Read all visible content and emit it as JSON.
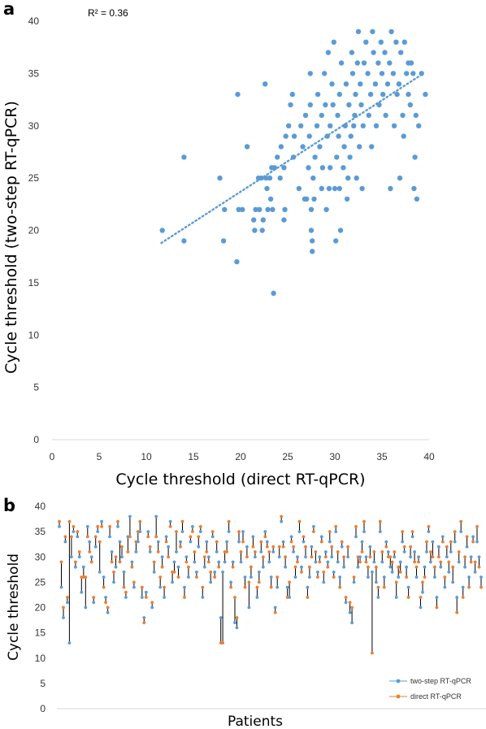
{
  "figure": {
    "panel_a_label": "a",
    "panel_b_label": "b"
  },
  "colors": {
    "two_step": "#5b9bd5",
    "direct": "#ed7d31",
    "connector": "#000000",
    "axis": "#d9d9d9"
  },
  "chart_data": [
    {
      "type": "scatter",
      "panel": "a",
      "xlabel": "Cycle threshold (direct RT-qPCR)",
      "ylabel": "Cycle threshold (two-step RT-qPCR)",
      "xlim": [
        0,
        40
      ],
      "ylim": [
        0,
        40
      ],
      "xticks": [
        "0",
        "5",
        "10",
        "15",
        "20",
        "25",
        "30",
        "35",
        "40"
      ],
      "yticks": [
        "0",
        "5",
        "10",
        "15",
        "20",
        "25",
        "30",
        "35",
        "40"
      ],
      "grid": false,
      "annotation": "R² = 0.36",
      "trendline": {
        "style": "dotted",
        "x": [
          11.6,
          39.4
        ],
        "y": [
          18.8,
          35.0
        ]
      },
      "points": [
        [
          11.7,
          20
        ],
        [
          14,
          27
        ],
        [
          14,
          19
        ],
        [
          17.8,
          25
        ],
        [
          18.2,
          19
        ],
        [
          18.3,
          22
        ],
        [
          19.7,
          33
        ],
        [
          19.6,
          17
        ],
        [
          19.8,
          22
        ],
        [
          20.2,
          22
        ],
        [
          20.7,
          28
        ],
        [
          21.4,
          21
        ],
        [
          21.6,
          22
        ],
        [
          21.5,
          20
        ],
        [
          21.9,
          25
        ],
        [
          22,
          22
        ],
        [
          22.2,
          25
        ],
        [
          22.4,
          21
        ],
        [
          22.3,
          20
        ],
        [
          22.6,
          34
        ],
        [
          22.7,
          25
        ],
        [
          22.8,
          24
        ],
        [
          22.9,
          22
        ],
        [
          23.1,
          25
        ],
        [
          23.2,
          23
        ],
        [
          23.3,
          26
        ],
        [
          23.4,
          22
        ],
        [
          23.5,
          14
        ],
        [
          23.6,
          26
        ],
        [
          23.9,
          27
        ],
        [
          24.2,
          25
        ],
        [
          24.3,
          28
        ],
        [
          24.6,
          26
        ],
        [
          24.7,
          22
        ],
        [
          24.8,
          29
        ],
        [
          24.6,
          21
        ],
        [
          25.1,
          30
        ],
        [
          25.3,
          32
        ],
        [
          25.6,
          27
        ],
        [
          25.7,
          29
        ],
        [
          25.5,
          33
        ],
        [
          26.2,
          24
        ],
        [
          26.4,
          30
        ],
        [
          26.6,
          28
        ],
        [
          26.8,
          23
        ],
        [
          26.9,
          31
        ],
        [
          27,
          23
        ],
        [
          27.2,
          26
        ],
        [
          27.3,
          29
        ],
        [
          27.4,
          32
        ],
        [
          27.4,
          35
        ],
        [
          27.5,
          20
        ],
        [
          27.5,
          22
        ],
        [
          27.6,
          19
        ],
        [
          27.6,
          18
        ],
        [
          27.7,
          25
        ],
        [
          27.8,
          23
        ],
        [
          27.9,
          27
        ],
        [
          28.1,
          30
        ],
        [
          28.2,
          33
        ],
        [
          28.4,
          28
        ],
        [
          28.6,
          24
        ],
        [
          28.6,
          31
        ],
        [
          28.7,
          26
        ],
        [
          28.9,
          35
        ],
        [
          29,
          32
        ],
        [
          29.1,
          22
        ],
        [
          29.2,
          29
        ],
        [
          29.3,
          37
        ],
        [
          29.4,
          24
        ],
        [
          29.5,
          30
        ],
        [
          29.5,
          26
        ],
        [
          29.7,
          34
        ],
        [
          29.8,
          32
        ],
        [
          29.9,
          38
        ],
        [
          30,
          24
        ],
        [
          30.1,
          19
        ],
        [
          30.2,
          27
        ],
        [
          30.3,
          31
        ],
        [
          30.4,
          29
        ],
        [
          30.5,
          33
        ],
        [
          30.5,
          24
        ],
        [
          30.6,
          20
        ],
        [
          30.7,
          36
        ],
        [
          30.9,
          26
        ],
        [
          31,
          28
        ],
        [
          31.1,
          30
        ],
        [
          31.2,
          34
        ],
        [
          31.3,
          23
        ],
        [
          31.4,
          25
        ],
        [
          31.5,
          32
        ],
        [
          31.6,
          27
        ],
        [
          31.7,
          29
        ],
        [
          31.8,
          37
        ],
        [
          31.9,
          35
        ],
        [
          32,
          30
        ],
        [
          32.1,
          31
        ],
        [
          32.2,
          33
        ],
        [
          32.3,
          25
        ],
        [
          32.4,
          36
        ],
        [
          32.5,
          39
        ],
        [
          32.6,
          28
        ],
        [
          32.7,
          34
        ],
        [
          32.8,
          32
        ],
        [
          32.9,
          24
        ],
        [
          33,
          30
        ],
        [
          33.1,
          36
        ],
        [
          33.3,
          38
        ],
        [
          33.5,
          35
        ],
        [
          33.6,
          31
        ],
        [
          33.8,
          33
        ],
        [
          33.9,
          28
        ],
        [
          34,
          39
        ],
        [
          34.1,
          37
        ],
        [
          34.3,
          34
        ],
        [
          34.4,
          30
        ],
        [
          34.6,
          36
        ],
        [
          34.7,
          32
        ],
        [
          34.9,
          38
        ],
        [
          35,
          35
        ],
        [
          35.1,
          33
        ],
        [
          35.3,
          37
        ],
        [
          35.4,
          31
        ],
        [
          35.6,
          34
        ],
        [
          35.8,
          36
        ],
        [
          35.9,
          24
        ],
        [
          36,
          39
        ],
        [
          36.2,
          35
        ],
        [
          36.3,
          30
        ],
        [
          36.5,
          38
        ],
        [
          36.6,
          33
        ],
        [
          36.8,
          34
        ],
        [
          36.9,
          25
        ],
        [
          37,
          37
        ],
        [
          37.2,
          31
        ],
        [
          37.3,
          29
        ],
        [
          37.4,
          38
        ],
        [
          37.6,
          35
        ],
        [
          37.8,
          33
        ],
        [
          38,
          32
        ],
        [
          38.1,
          36
        ],
        [
          38.3,
          35
        ],
        [
          38.4,
          24
        ],
        [
          38.6,
          31
        ],
        [
          38.5,
          27
        ],
        [
          38.7,
          23
        ],
        [
          38.9,
          30
        ],
        [
          39.2,
          35
        ],
        [
          39.6,
          33
        ],
        [
          37.8,
          36
        ]
      ]
    },
    {
      "type": "line",
      "panel": "b",
      "xlabel": "Patients",
      "ylabel": "Cycle threshold",
      "ylim": [
        0,
        40
      ],
      "yticks": [
        "0",
        "5",
        "10",
        "15",
        "20",
        "25",
        "30",
        "35",
        "40"
      ],
      "grid": false,
      "legend_position": "bottom-right",
      "series": [
        {
          "name": "two-step RT-qPCR"
        },
        {
          "name": "direct RT-qPCR"
        }
      ],
      "pairs": [
        [
          36,
          37
        ],
        [
          24,
          29
        ],
        [
          18,
          20
        ],
        [
          33,
          34
        ],
        [
          21,
          22
        ],
        [
          13,
          37
        ],
        [
          30,
          34
        ],
        [
          35,
          36
        ],
        [
          28,
          29
        ],
        [
          34,
          35
        ],
        [
          30,
          31
        ],
        [
          23,
          26
        ],
        [
          28,
          26
        ],
        [
          20,
          26
        ],
        [
          36,
          34
        ],
        [
          33,
          31
        ],
        [
          30,
          29
        ],
        [
          21,
          22
        ],
        [
          32,
          34
        ],
        [
          35,
          36
        ],
        [
          27,
          33
        ],
        [
          37,
          36
        ],
        [
          26,
          24
        ],
        [
          22,
          21
        ],
        [
          19,
          20
        ],
        [
          34,
          36
        ],
        [
          31,
          29
        ],
        [
          25,
          27
        ],
        [
          28,
          30
        ],
        [
          36,
          37
        ],
        [
          33,
          29
        ],
        [
          30,
          32
        ],
        [
          27,
          24
        ],
        [
          22,
          23
        ],
        [
          34,
          31
        ],
        [
          38,
          34
        ],
        [
          29,
          28
        ],
        [
          24,
          25
        ],
        [
          31,
          33
        ],
        [
          33,
          35
        ],
        [
          35,
          37
        ],
        [
          22,
          24
        ],
        [
          18,
          17
        ],
        [
          23,
          22
        ],
        [
          35,
          34
        ],
        [
          31,
          32
        ],
        [
          20,
          21
        ],
        [
          27,
          29
        ],
        [
          38,
          34
        ],
        [
          33,
          31
        ],
        [
          24,
          26
        ],
        [
          30,
          28
        ],
        [
          22,
          24
        ],
        [
          34,
          33
        ],
        [
          32,
          30
        ],
        [
          37,
          36
        ],
        [
          25,
          27
        ],
        [
          29,
          27
        ],
        [
          31,
          35
        ],
        [
          28,
          26
        ],
        [
          33,
          32
        ],
        [
          35,
          37
        ],
        [
          24,
          22
        ],
        [
          30,
          29
        ],
        [
          26,
          28
        ],
        [
          33,
          34
        ],
        [
          36,
          35
        ],
        [
          29,
          31
        ],
        [
          27,
          26
        ],
        [
          32,
          34
        ],
        [
          35,
          36
        ],
        [
          22,
          24
        ],
        [
          28,
          30
        ],
        [
          33,
          31
        ],
        [
          30,
          29
        ],
        [
          25,
          27
        ],
        [
          34,
          35
        ],
        [
          27,
          26
        ],
        [
          31,
          33
        ],
        [
          29,
          28
        ],
        [
          18,
          13
        ],
        [
          27,
          13
        ],
        [
          29,
          31
        ],
        [
          33,
          31
        ],
        [
          35,
          37
        ],
        [
          25,
          24
        ],
        [
          29,
          28
        ],
        [
          17,
          22
        ],
        [
          16,
          18
        ],
        [
          33,
          35
        ],
        [
          29,
          31
        ],
        [
          35,
          33
        ],
        [
          26,
          24
        ],
        [
          32,
          30
        ],
        [
          20,
          25
        ],
        [
          26,
          28
        ],
        [
          34,
          32
        ],
        [
          30,
          31
        ],
        [
          22,
          24
        ],
        [
          27,
          25
        ],
        [
          31,
          33
        ],
        [
          28,
          30
        ],
        [
          35,
          34
        ],
        [
          33,
          32
        ],
        [
          29,
          31
        ],
        [
          26,
          24
        ],
        [
          31,
          32
        ],
        [
          20,
          19
        ],
        [
          24,
          26
        ],
        [
          30,
          32
        ],
        [
          37,
          38
        ],
        [
          33,
          32
        ],
        [
          28,
          30
        ],
        [
          24,
          22
        ],
        [
          22,
          25
        ],
        [
          34,
          33
        ],
        [
          31,
          32
        ],
        [
          26,
          28
        ],
        [
          30,
          29
        ],
        [
          35,
          37
        ],
        [
          28,
          27
        ],
        [
          33,
          34
        ],
        [
          30,
          32
        ],
        [
          24,
          22
        ],
        [
          26,
          28
        ],
        [
          32,
          30
        ],
        [
          36,
          35
        ],
        [
          29,
          31
        ],
        [
          27,
          26
        ],
        [
          30,
          29
        ],
        [
          34,
          33
        ],
        [
          25,
          27
        ],
        [
          31,
          30
        ],
        [
          29,
          28
        ],
        [
          33,
          35
        ],
        [
          30,
          32
        ],
        [
          27,
          26
        ],
        [
          35,
          36
        ],
        [
          29,
          31
        ],
        [
          26,
          24
        ],
        [
          32,
          33
        ],
        [
          28,
          30
        ],
        [
          21,
          22
        ],
        [
          30,
          32
        ],
        [
          19,
          21
        ],
        [
          17,
          20
        ],
        [
          25,
          26
        ],
        [
          34,
          36
        ],
        [
          28,
          30
        ],
        [
          30,
          29
        ],
        [
          33,
          31
        ],
        [
          35,
          37
        ],
        [
          30,
          29
        ],
        [
          26,
          28
        ],
        [
          32,
          30
        ],
        [
          27,
          11
        ],
        [
          29,
          31
        ],
        [
          25,
          28
        ],
        [
          22,
          24
        ],
        [
          35,
          37
        ],
        [
          29,
          31
        ],
        [
          26,
          24
        ],
        [
          33,
          32
        ],
        [
          31,
          30
        ],
        [
          28,
          30
        ],
        [
          27,
          29
        ],
        [
          30,
          31
        ],
        [
          22,
          25
        ],
        [
          26,
          28
        ],
        [
          29,
          27
        ],
        [
          33,
          35
        ],
        [
          31,
          32
        ],
        [
          28,
          26
        ],
        [
          24,
          22
        ],
        [
          30,
          32
        ],
        [
          34,
          35
        ],
        [
          31,
          29
        ],
        [
          26,
          28
        ],
        [
          30,
          29
        ],
        [
          20,
          22
        ],
        [
          23,
          25
        ],
        [
          28,
          26
        ],
        [
          31,
          33
        ],
        [
          35,
          36
        ],
        [
          29,
          31
        ],
        [
          33,
          30
        ],
        [
          26,
          28
        ],
        [
          22,
          20
        ],
        [
          32,
          30
        ],
        [
          28,
          29
        ],
        [
          34,
          33
        ],
        [
          24,
          26
        ],
        [
          30,
          32
        ],
        [
          27,
          29
        ],
        [
          31,
          33
        ],
        [
          25,
          28
        ],
        [
          33,
          35
        ],
        [
          22,
          19
        ],
        [
          29,
          31
        ],
        [
          35,
          37
        ],
        [
          24,
          22
        ],
        [
          28,
          30
        ],
        [
          32,
          34
        ],
        [
          26,
          24
        ],
        [
          30,
          29
        ],
        [
          34,
          33
        ],
        [
          27,
          29
        ],
        [
          33,
          36
        ],
        [
          30,
          28
        ],
        [
          26,
          24
        ]
      ]
    }
  ]
}
